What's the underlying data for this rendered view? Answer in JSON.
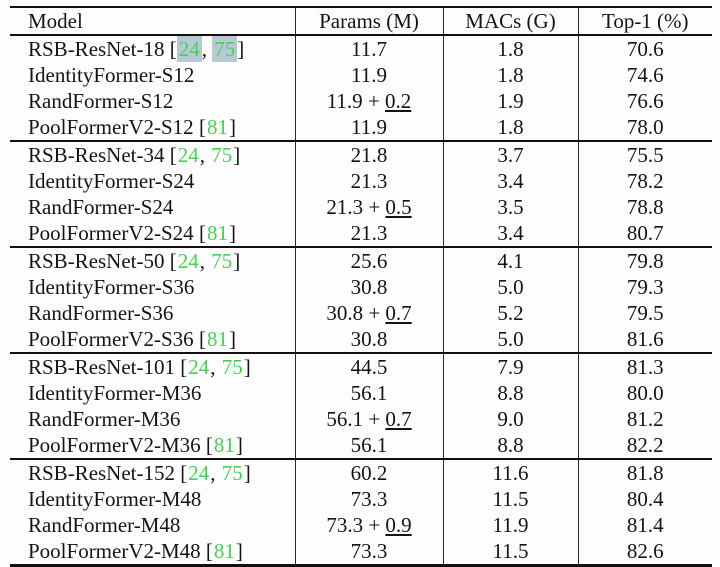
{
  "table": {
    "columns": [
      "Model",
      "Params (M)",
      "MACs (G)",
      "Top-1 (%)"
    ],
    "citation": {
      "open": "[",
      "separator": ", ",
      "close": "]",
      "color": "#43d44f",
      "highlight_color": "#b6c9d5"
    },
    "params_plus": "+",
    "groups": [
      {
        "rows": [
          {
            "model": "RSB-ResNet-18",
            "cites": [
              "24",
              "75"
            ],
            "cite_highlighted": true,
            "params": "11.7",
            "delta": null,
            "macs": "1.8",
            "top1": "70.6"
          },
          {
            "model": "IdentityFormer-S12",
            "cites": [],
            "cite_highlighted": false,
            "params": "11.9",
            "delta": null,
            "macs": "1.8",
            "top1": "74.6"
          },
          {
            "model": "RandFormer-S12",
            "cites": [],
            "cite_highlighted": false,
            "params": "11.9",
            "delta": "0.2",
            "macs": "1.9",
            "top1": "76.6"
          },
          {
            "model": "PoolFormerV2-S12",
            "cites": [
              "81"
            ],
            "cite_highlighted": false,
            "params": "11.9",
            "delta": null,
            "macs": "1.8",
            "top1": "78.0"
          }
        ]
      },
      {
        "rows": [
          {
            "model": "RSB-ResNet-34",
            "cites": [
              "24",
              "75"
            ],
            "cite_highlighted": false,
            "params": "21.8",
            "delta": null,
            "macs": "3.7",
            "top1": "75.5"
          },
          {
            "model": "IdentityFormer-S24",
            "cites": [],
            "cite_highlighted": false,
            "params": "21.3",
            "delta": null,
            "macs": "3.4",
            "top1": "78.2"
          },
          {
            "model": "RandFormer-S24",
            "cites": [],
            "cite_highlighted": false,
            "params": "21.3",
            "delta": "0.5",
            "macs": "3.5",
            "top1": "78.8"
          },
          {
            "model": "PoolFormerV2-S24",
            "cites": [
              "81"
            ],
            "cite_highlighted": false,
            "params": "21.3",
            "delta": null,
            "macs": "3.4",
            "top1": "80.7"
          }
        ]
      },
      {
        "rows": [
          {
            "model": "RSB-ResNet-50",
            "cites": [
              "24",
              "75"
            ],
            "cite_highlighted": false,
            "params": "25.6",
            "delta": null,
            "macs": "4.1",
            "top1": "79.8"
          },
          {
            "model": "IdentityFormer-S36",
            "cites": [],
            "cite_highlighted": false,
            "params": "30.8",
            "delta": null,
            "macs": "5.0",
            "top1": "79.3"
          },
          {
            "model": "RandFormer-S36",
            "cites": [],
            "cite_highlighted": false,
            "params": "30.8",
            "delta": "0.7",
            "macs": "5.2",
            "top1": "79.5"
          },
          {
            "model": "PoolFormerV2-S36",
            "cites": [
              "81"
            ],
            "cite_highlighted": false,
            "params": "30.8",
            "delta": null,
            "macs": "5.0",
            "top1": "81.6"
          }
        ]
      },
      {
        "rows": [
          {
            "model": "RSB-ResNet-101",
            "cites": [
              "24",
              "75"
            ],
            "cite_highlighted": false,
            "params": "44.5",
            "delta": null,
            "macs": "7.9",
            "top1": "81.3"
          },
          {
            "model": "IdentityFormer-M36",
            "cites": [],
            "cite_highlighted": false,
            "params": "56.1",
            "delta": null,
            "macs": "8.8",
            "top1": "80.0"
          },
          {
            "model": "RandFormer-M36",
            "cites": [],
            "cite_highlighted": false,
            "params": "56.1",
            "delta": "0.7",
            "macs": "9.0",
            "top1": "81.2"
          },
          {
            "model": "PoolFormerV2-M36",
            "cites": [
              "81"
            ],
            "cite_highlighted": false,
            "params": "56.1",
            "delta": null,
            "macs": "8.8",
            "top1": "82.2"
          }
        ]
      },
      {
        "rows": [
          {
            "model": "RSB-ResNet-152",
            "cites": [
              "24",
              "75"
            ],
            "cite_highlighted": false,
            "params": "60.2",
            "delta": null,
            "macs": "11.6",
            "top1": "81.8"
          },
          {
            "model": "IdentityFormer-M48",
            "cites": [],
            "cite_highlighted": false,
            "params": "73.3",
            "delta": null,
            "macs": "11.5",
            "top1": "80.4"
          },
          {
            "model": "RandFormer-M48",
            "cites": [],
            "cite_highlighted": false,
            "params": "73.3",
            "delta": "0.9",
            "macs": "11.9",
            "top1": "81.4"
          },
          {
            "model": "PoolFormerV2-M48",
            "cites": [
              "81"
            ],
            "cite_highlighted": false,
            "params": "73.3",
            "delta": null,
            "macs": "11.5",
            "top1": "82.6"
          }
        ]
      }
    ]
  }
}
